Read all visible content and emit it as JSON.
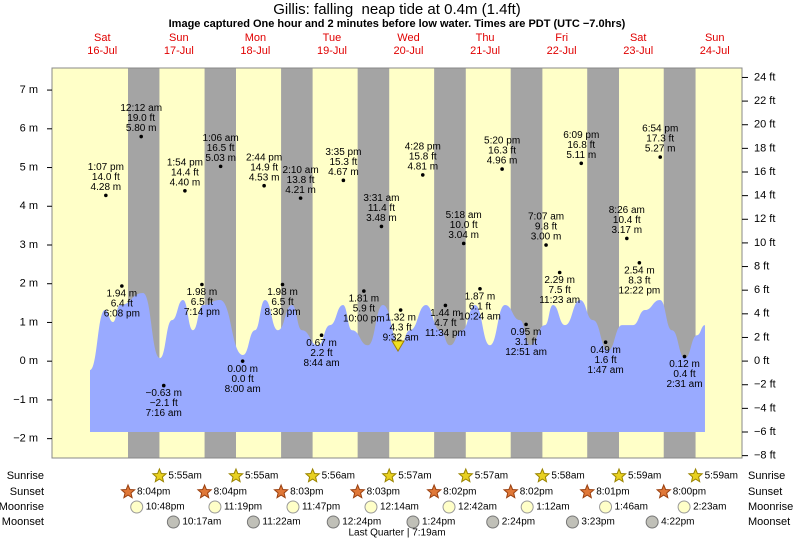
{
  "chart_data": {
    "type": "tide",
    "title": "Gillis: falling  neap tide at 0.4m (1.4ft)",
    "subtitle": "Image captured One hour and 2 minutes before low water. Times are PDT (UTC −7.0hrs)",
    "weekdays": [
      "Sat",
      "Sun",
      "Mon",
      "Tue",
      "Wed",
      "Thu",
      "Fri",
      "Sat",
      "Sun"
    ],
    "dates": [
      "16-Jul",
      "17-Jul",
      "18-Jul",
      "19-Jul",
      "20-Jul",
      "21-Jul",
      "22-Jul",
      "23-Jul",
      "24-Jul"
    ],
    "ylim": [
      -2.5,
      7.57
    ],
    "yticks": [
      {
        "value": -2,
        "label": "−2 m"
      },
      {
        "value": -1,
        "label": "−1 m"
      },
      {
        "value": 0,
        "label": "0 m"
      },
      {
        "value": 1,
        "label": "1 m"
      },
      {
        "value": 2,
        "label": "2 m"
      },
      {
        "value": 3,
        "label": "3 m"
      },
      {
        "value": 4,
        "label": "4 m"
      },
      {
        "value": 5,
        "label": "5 m"
      },
      {
        "value": 6,
        "label": "6 m"
      },
      {
        "value": 7,
        "label": "7 m"
      }
    ],
    "y2lim": [
      -8.2,
      24.8
    ],
    "y2ticks": [
      {
        "value": -8,
        "label": "−8 ft"
      },
      {
        "value": -6,
        "label": "−6 ft"
      },
      {
        "value": -4,
        "label": "−4 ft"
      },
      {
        "value": -2,
        "label": "−2 ft"
      },
      {
        "value": 0,
        "label": "0 ft"
      },
      {
        "value": 2,
        "label": "2 ft"
      },
      {
        "value": 4,
        "label": "4 ft"
      },
      {
        "value": 6,
        "label": "6 ft"
      },
      {
        "value": 8,
        "label": "8 ft"
      },
      {
        "value": 10,
        "label": "10 ft"
      },
      {
        "value": 12,
        "label": "12 ft"
      },
      {
        "value": 14,
        "label": "14 ft"
      },
      {
        "value": 16,
        "label": "16 ft"
      },
      {
        "value": 18,
        "label": "18 ft"
      },
      {
        "value": 20,
        "label": "20 ft"
      },
      {
        "value": 22,
        "label": "22 ft"
      },
      {
        "value": 24,
        "label": "24 ft"
      }
    ],
    "tide_curve": {
      "color": "#99aaff",
      "x": [
        "16-Jul 08:09",
        "16-Jul 12:51",
        "16-Jul 15:22",
        "16-Jul 17:33",
        "17-Jul 00:46",
        "17-Jul 06:05",
        "17-Jul 09:51",
        "17-Jul 13:18",
        "17-Jul 16:26",
        "17-Jul 19:34",
        "18-Jul 00:54",
        "18-Jul 08:06",
        "18-Jul 11:52",
        "18-Jul 15:01",
        "18-Jul 19:05",
        "18-Jul 23:28",
        "19-Jul 02:36",
        "19-Jul 07:37",
        "19-Jul 11:23",
        "19-Jul 15:28",
        "19-Jul 18:17",
        "19-Jul 23:18",
        "20-Jul 04:00",
        "20-Jul 09:20",
        "20-Jul 12:28",
        "20-Jul 17:29",
        "20-Jul 21:52",
        "21-Jul 01:00",
        "21-Jul 04:46",
        "21-Jul 08:50",
        "21-Jul 13:32",
        "21-Jul 18:14",
        "21-Jul 22:57",
        "22-Jul 02:05",
        "22-Jul 06:47",
        "22-Jul 09:17",
        "22-Jul 13:03",
        "22-Jul 17:46",
        "22-Jul 21:50",
        "23-Jul 02:32",
        "23-Jul 06:55",
        "23-Jul 10:22",
        "23-Jul 14:08",
        "23-Jul 18:50",
        "23-Jul 22:36",
        "24-Jul 02:40",
        "24-Jul 06:26",
        "24-Jul 08:56"
      ],
      "values": [
        -0.23,
        1.32,
        1.01,
        1.45,
        1.76,
        0.08,
        1.06,
        1.58,
        0.8,
        1.45,
        1.58,
        0.16,
        0.8,
        1.58,
        0.8,
        1.45,
        0.8,
        0.41,
        0.93,
        1.45,
        0.8,
        0.41,
        1.45,
        0.41,
        0.8,
        1.45,
        0.8,
        0.41,
        0.8,
        1.45,
        0.41,
        1.45,
        1.06,
        0.41,
        0.93,
        1.45,
        0.93,
        1.58,
        1.06,
        0.28,
        0.93,
        0.93,
        1.32,
        1.58,
        0.8,
        0.08,
        0.67,
        0.93
      ]
    },
    "extrema": {
      "day": [
        "16-Jul",
        "16-Jul",
        "17-Jul",
        "17-Jul",
        "17-Jul",
        "17-Jul",
        "18-Jul",
        "18-Jul",
        "18-Jul",
        "18-Jul",
        "19-Jul",
        "19-Jul",
        "19-Jul",
        "19-Jul",
        "20-Jul",
        "20-Jul",
        "20-Jul",
        "20-Jul",
        "21-Jul",
        "21-Jul",
        "21-Jul",
        "22-Jul",
        "22-Jul",
        "22-Jul",
        "22-Jul",
        "23-Jul",
        "23-Jul",
        "23-Jul",
        "23-Jul",
        "24-Jul"
      ],
      "time": [
        "1:07 pm",
        "6:08 pm",
        "12:12 am",
        "7:16 am",
        "1:54 pm",
        "7:14 pm",
        "1:06 am",
        "8:00 am",
        "2:44 pm",
        "8:30 pm",
        "2:10 am",
        "8:44 am",
        "3:35 pm",
        "10:00 pm",
        "3:31 am",
        "9:32 am",
        "4:28 pm",
        "11:34 pm",
        "5:18 am",
        "10:24 am",
        "5:20 pm",
        "12:51 am",
        "7:07 am",
        "11:23 am",
        "6:09 pm",
        "1:47 am",
        "8:26 am",
        "12:22 pm",
        "6:54 pm",
        "2:31 am"
      ],
      "values": [
        4.28,
        1.94,
        5.8,
        -0.63,
        4.4,
        1.98,
        5.03,
        0.0,
        4.53,
        1.98,
        4.21,
        0.67,
        4.67,
        1.81,
        3.48,
        1.32,
        4.81,
        1.44,
        3.04,
        1.87,
        4.96,
        0.95,
        3.0,
        2.29,
        5.11,
        0.49,
        3.17,
        2.54,
        5.27,
        0.12
      ],
      "value_labels": [
        "4.28 m",
        "1.94 m",
        "5.80 m",
        "−0.63 m",
        "4.40 m",
        "1.98 m",
        "5.03 m",
        "0.00 m",
        "4.53 m",
        "1.98 m",
        "4.21 m",
        "0.67 m",
        "4.67 m",
        "1.81 m",
        "3.48 m",
        "1.32 m",
        "4.81 m",
        "1.44 m",
        "3.04 m",
        "1.87 m",
        "4.96 m",
        "0.95 m",
        "3.00 m",
        "2.29 m",
        "5.11 m",
        "0.49 m",
        "3.17 m",
        "2.54 m",
        "5.27 m",
        "0.12 m"
      ],
      "ft_labels": [
        "14.0 ft",
        "6.4 ft",
        "19.0 ft",
        "−2.1 ft",
        "14.4 ft",
        "6.5 ft",
        "16.5 ft",
        "0.0 ft",
        "14.9 ft",
        "6.5 ft",
        "13.8 ft",
        "2.2 ft",
        "15.3 ft",
        "5.9 ft",
        "11.4 ft",
        "4.3 ft",
        "15.8 ft",
        "4.7 ft",
        "10.0 ft",
        "6.1 ft",
        "16.3 ft",
        "3.1 ft",
        "9.8 ft",
        "7.5 ft",
        "16.8 ft",
        "1.6 ft",
        "10.4 ft",
        "8.3 ft",
        "17.3 ft",
        "0.4 ft"
      ]
    },
    "row_labels": [
      "Sunrise",
      "Sunset",
      "Moonrise",
      "Moonset"
    ],
    "sunrise": {
      "day": [
        "17-Jul",
        "18-Jul",
        "19-Jul",
        "20-Jul",
        "21-Jul",
        "22-Jul",
        "23-Jul",
        "24-Jul"
      ],
      "time": [
        "5:55am",
        "5:55am",
        "5:56am",
        "5:57am",
        "5:57am",
        "5:58am",
        "5:59am",
        "5:59am"
      ]
    },
    "sunset": {
      "day": [
        "16-Jul",
        "17-Jul",
        "18-Jul",
        "19-Jul",
        "20-Jul",
        "21-Jul",
        "22-Jul",
        "23-Jul"
      ],
      "time": [
        "8:04pm",
        "8:04pm",
        "8:03pm",
        "8:03pm",
        "8:02pm",
        "8:02pm",
        "8:01pm",
        "8:00pm"
      ]
    },
    "moonrise": {
      "day": [
        "16-Jul",
        "17-Jul",
        "18-Jul",
        "20-Jul",
        "21-Jul",
        "22-Jul",
        "23-Jul",
        "24-Jul"
      ],
      "time": [
        "10:48pm",
        "11:19pm",
        "11:47pm",
        "12:14am",
        "12:42am",
        "1:12am",
        "1:46am",
        "2:23am"
      ]
    },
    "moonset": {
      "day": [
        "17-Jul",
        "18-Jul",
        "19-Jul",
        "20-Jul",
        "21-Jul",
        "22-Jul",
        "23-Jul"
      ],
      "time": [
        "10:17am",
        "11:22am",
        "12:24pm",
        "1:24pm",
        "2:24pm",
        "3:23pm",
        "4:22pm"
      ]
    },
    "phase": "Last Quarter | 7:19am"
  }
}
